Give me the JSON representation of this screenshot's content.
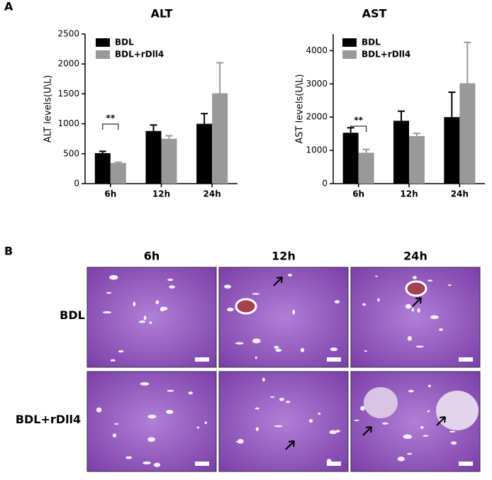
{
  "panel_labels": [
    "A",
    "B"
  ],
  "chart_data": [
    {
      "type": "bar",
      "title": "ALT",
      "y_label": "ALT levels(U\\L)",
      "categories": [
        "6h",
        "12h",
        "24h"
      ],
      "series": [
        {
          "name": "BDL",
          "color": "#000000",
          "values": [
            510,
            880,
            1000
          ],
          "errors": [
            30,
            100,
            170
          ]
        },
        {
          "name": "BDL+rDll4",
          "color": "#999999",
          "values": [
            345,
            750,
            1510
          ],
          "errors": [
            15,
            50,
            510
          ]
        }
      ],
      "ylim": [
        0,
        2500
      ],
      "yticks": [
        0,
        500,
        1000,
        1500,
        2000,
        2500
      ],
      "annotation": "**"
    },
    {
      "type": "bar",
      "title": "AST",
      "y_label": "AST levels(U\\L)",
      "categories": [
        "6h",
        "12h",
        "24h"
      ],
      "series": [
        {
          "name": "BDL",
          "color": "#000000",
          "values": [
            1530,
            1890,
            2000
          ],
          "errors": [
            150,
            290,
            750
          ]
        },
        {
          "name": "BDL+rDll4",
          "color": "#999999",
          "values": [
            930,
            1430,
            3020
          ],
          "errors": [
            100,
            80,
            1230
          ]
        }
      ],
      "ylim": [
        0,
        4500
      ],
      "yticks": [
        0,
        1000,
        2000,
        3000,
        4000
      ],
      "annotation": "**"
    }
  ],
  "image_grid": {
    "columns": [
      "6h",
      "12h",
      "24h"
    ],
    "rows": [
      "BDL",
      "BDL+rDll4"
    ]
  }
}
